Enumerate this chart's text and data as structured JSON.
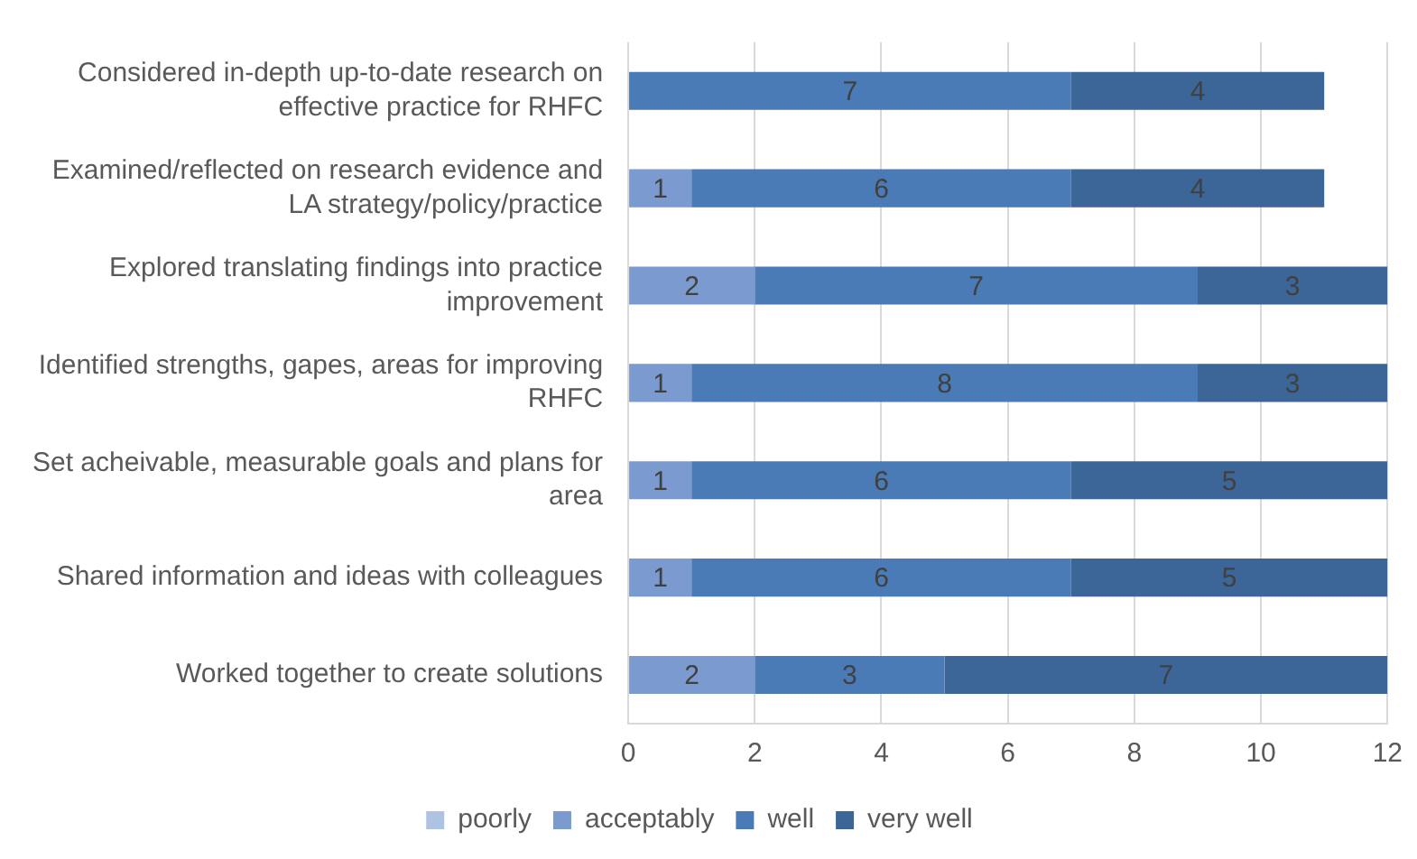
{
  "chart_data": {
    "type": "bar",
    "orientation": "horizontal",
    "stacked": true,
    "categories": [
      "Considered in-depth up-to-date research on effective practice for RHFC",
      "Examined/reflected on research evidence and LA strategy/policy/practice",
      "Explored translating findings into practice improvement",
      "Identified strengths, gapes, areas for improving RHFC",
      "Set acheivable, measurable goals and plans for area",
      "Shared information and ideas with colleagues",
      "Worked together to create solutions"
    ],
    "series": [
      {
        "name": "poorly",
        "color": "#aec2e4",
        "values": [
          null,
          null,
          null,
          null,
          null,
          null,
          null
        ]
      },
      {
        "name": "acceptably",
        "color": "#7b9bd0",
        "values": [
          null,
          1,
          2,
          1,
          1,
          1,
          2
        ]
      },
      {
        "name": "well",
        "color": "#4a7bb6",
        "values": [
          7,
          6,
          7,
          8,
          6,
          6,
          3
        ]
      },
      {
        "name": "very well",
        "color": "#3d6698",
        "values": [
          4,
          4,
          3,
          3,
          5,
          5,
          7
        ]
      }
    ],
    "xlim": [
      0,
      12
    ],
    "xticks": [
      0,
      2,
      4,
      6,
      8,
      10,
      12
    ],
    "grid": "x",
    "legend": "bottom",
    "data_labels": true
  }
}
